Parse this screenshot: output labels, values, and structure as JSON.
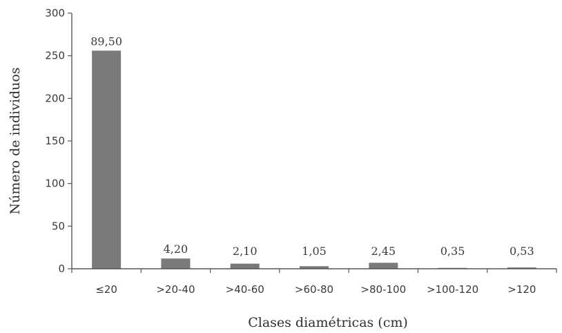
{
  "chart_data": {
    "type": "bar",
    "categories": [
      "≤20",
      ">20-40",
      ">40-60",
      ">60-80",
      ">80-100",
      ">100-120",
      ">120"
    ],
    "values": [
      256,
      12,
      6,
      3,
      7,
      1,
      1.5
    ],
    "data_labels": [
      "89,50",
      "4,20",
      "2,10",
      "1,05",
      "2,45",
      "0,35",
      "0,53"
    ],
    "xlabel": "Clases diamétricas (cm)",
    "ylabel": "Número de individuos",
    "ylim": [
      0,
      300
    ],
    "yticks": [
      "0",
      "50",
      "100",
      "150",
      "200",
      "250",
      "300"
    ],
    "grid": false,
    "bar_color": "#7a7a7a"
  }
}
